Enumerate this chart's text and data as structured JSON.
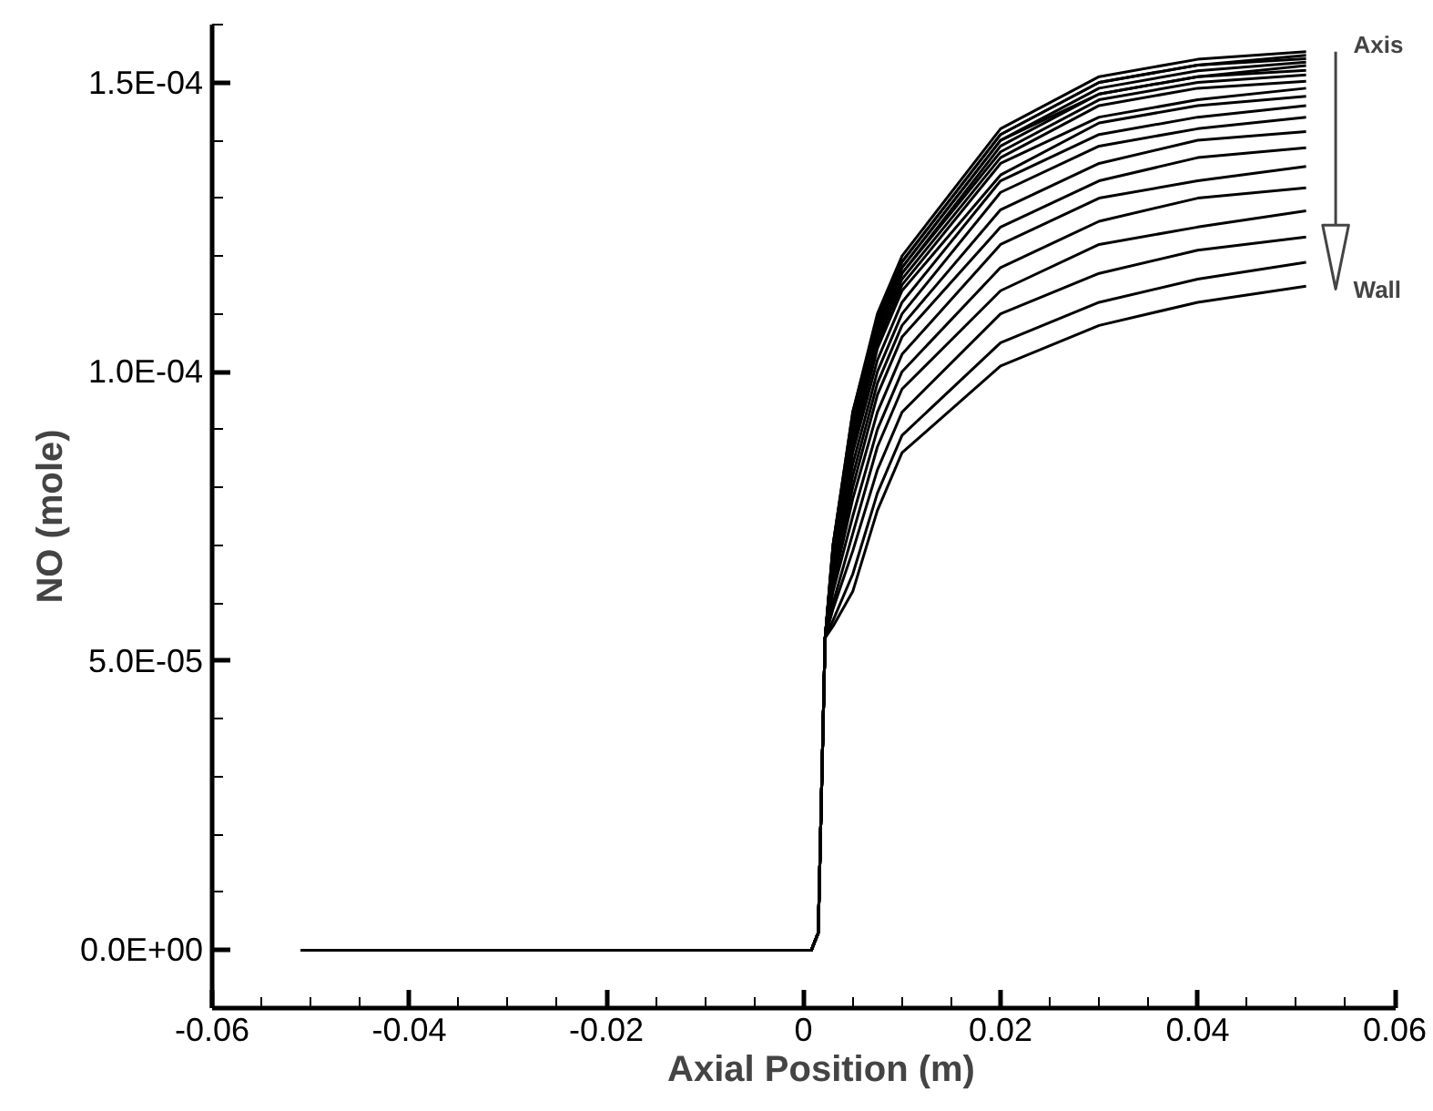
{
  "chart_data": {
    "type": "line",
    "xlabel": "Axial Position (m)",
    "ylabel": "NO (mole)",
    "x": [
      -0.051,
      0.0008,
      0.0015,
      0.0022,
      0.003,
      0.005,
      0.0075,
      0.01,
      0.02,
      0.03,
      0.04,
      0.051
    ],
    "xlim": [
      -0.06,
      0.06
    ],
    "ylim": [
      -1e-05,
      0.00016
    ],
    "xticks": [
      -0.06,
      {
        "value": -0.055,
        "label": null
      },
      {
        "value": -0.05,
        "label": null
      },
      {
        "value": -0.045,
        "label": null
      },
      -0.04,
      {
        "value": -0.035,
        "label": null
      },
      {
        "value": -0.03,
        "label": null
      },
      {
        "value": -0.025,
        "label": null
      },
      -0.02,
      {
        "value": -0.015,
        "label": null
      },
      {
        "value": -0.01,
        "label": null
      },
      {
        "value": -0.005,
        "label": null
      },
      0,
      {
        "value": 0.005,
        "label": null
      },
      {
        "value": 0.01,
        "label": null
      },
      {
        "value": 0.015,
        "label": null
      },
      0.02,
      {
        "value": 0.025,
        "label": null
      },
      {
        "value": 0.03,
        "label": null
      },
      {
        "value": 0.035,
        "label": null
      },
      0.04,
      {
        "value": 0.045,
        "label": null
      },
      {
        "value": 0.05,
        "label": null
      },
      {
        "value": 0.055,
        "label": null
      },
      0.06
    ],
    "yticks": [
      {
        "value": 0,
        "label": "0.0E+00"
      },
      {
        "value": 1e-05,
        "label": null
      },
      {
        "value": 2e-05,
        "label": null
      },
      {
        "value": 3e-05,
        "label": null
      },
      {
        "value": 4e-05,
        "label": null
      },
      {
        "value": 5e-05,
        "label": "5.0E-05"
      },
      {
        "value": 6e-05,
        "label": null
      },
      {
        "value": 7e-05,
        "label": null
      },
      {
        "value": 8e-05,
        "label": null
      },
      {
        "value": 9e-05,
        "label": null
      },
      {
        "value": 0.0001,
        "label": "1.0E-04"
      },
      {
        "value": 0.00011,
        "label": null
      },
      {
        "value": 0.00012,
        "label": null
      },
      {
        "value": 0.00013,
        "label": null
      },
      {
        "value": 0.00014,
        "label": null
      },
      {
        "value": 0.00015,
        "label": "1.5E-04"
      },
      {
        "value": 0.00016,
        "label": null
      }
    ],
    "grid": false,
    "marker": "none",
    "line_style": "solid",
    "annotations": [
      "Axis",
      "Wall"
    ],
    "series": [
      {
        "color": "#000000",
        "values": [
          0,
          0,
          3e-06,
          5.4e-05,
          7e-05,
          9.3e-05,
          0.00011,
          0.00012,
          0.000142,
          0.000151,
          0.000154,
          0.0001553
        ]
      },
      {
        "color": "#000000",
        "values": [
          0,
          0,
          3e-06,
          5.4e-05,
          7e-05,
          9.3e-05,
          0.000109,
          0.000119,
          0.000141,
          0.00015,
          0.000153,
          0.0001547
        ]
      },
      {
        "color": "#000000",
        "values": [
          0,
          0,
          3e-06,
          5.4e-05,
          7e-05,
          9.2e-05,
          0.000109,
          0.000119,
          0.000141,
          0.00015,
          0.000153,
          0.0001541
        ]
      },
      {
        "color": "#000000",
        "values": [
          0,
          0,
          3e-06,
          5.4e-05,
          6.9e-05,
          9.2e-05,
          0.000108,
          0.000118,
          0.00014,
          0.000149,
          0.000152,
          0.0001535
        ]
      },
      {
        "color": "#000000",
        "values": [
          0,
          0,
          3e-06,
          5.4e-05,
          6.9e-05,
          9.1e-05,
          0.000108,
          0.000118,
          0.00014,
          0.000148,
          0.000151,
          0.0001529
        ]
      },
      {
        "color": "#000000",
        "values": [
          0,
          0,
          3e-06,
          5.4e-05,
          6.9e-05,
          9.1e-05,
          0.000107,
          0.000117,
          0.000139,
          0.000148,
          0.000151,
          0.0001521
        ]
      },
      {
        "color": "#000000",
        "values": [
          0,
          0,
          3e-06,
          5.4e-05,
          6.9e-05,
          9e-05,
          0.000107,
          0.000117,
          0.000138,
          0.000147,
          0.00015,
          0.0001513
        ]
      },
      {
        "color": "#000000",
        "values": [
          0,
          0,
          3e-06,
          5.4e-05,
          6.8e-05,
          8.9e-05,
          0.000106,
          0.000116,
          0.000137,
          0.000146,
          0.000149,
          0.0001502
        ]
      },
      {
        "color": "#000000",
        "values": [
          0,
          0,
          3e-06,
          5.4e-05,
          6.8e-05,
          8.8e-05,
          0.000105,
          0.000115,
          0.000136,
          0.000144,
          0.000147,
          0.000149
        ]
      },
      {
        "color": "#000000",
        "values": [
          0,
          0,
          3e-06,
          5.4e-05,
          6.7e-05,
          8.7e-05,
          0.000104,
          0.000114,
          0.000134,
          0.000143,
          0.000146,
          0.0001476
        ]
      },
      {
        "color": "#000000",
        "values": [
          0,
          0,
          3e-06,
          5.4e-05,
          6.7e-05,
          8.6e-05,
          0.000102,
          0.000112,
          0.000133,
          0.000141,
          0.000144,
          0.000146
        ]
      },
      {
        "color": "#000000",
        "values": [
          0,
          0,
          3e-06,
          5.4e-05,
          6.6e-05,
          8.4e-05,
          0.0001,
          0.00011,
          0.000131,
          0.000139,
          0.000142,
          0.000144
        ]
      },
      {
        "color": "#000000",
        "values": [
          0,
          0,
          3e-06,
          5.4e-05,
          6.5e-05,
          8.2e-05,
          9.8e-05,
          0.000108,
          0.000128,
          0.000136,
          0.00014,
          0.0001415
        ]
      },
      {
        "color": "#000000",
        "values": [
          0,
          0,
          3e-06,
          5.4e-05,
          6.4e-05,
          8e-05,
          9.6e-05,
          0.000106,
          0.000125,
          0.000133,
          0.000137,
          0.0001387
        ]
      },
      {
        "color": "#000000",
        "values": [
          0,
          0,
          3e-06,
          5.4e-05,
          6.3e-05,
          7.8e-05,
          9.3e-05,
          0.000103,
          0.000122,
          0.00013,
          0.000133,
          0.0001355
        ]
      },
      {
        "color": "#000000",
        "values": [
          0,
          0,
          3e-06,
          5.4e-05,
          6.2e-05,
          7.5e-05,
          9e-05,
          0.0001,
          0.000118,
          0.000126,
          0.00013,
          0.0001318
        ]
      },
      {
        "color": "#000000",
        "values": [
          0,
          0,
          3e-06,
          5.4e-05,
          6e-05,
          7.2e-05,
          8.7e-05,
          9.7e-05,
          0.000114,
          0.000122,
          0.000125,
          0.0001278
        ]
      },
      {
        "color": "#000000",
        "values": [
          0,
          0,
          3e-06,
          5.4e-05,
          5.9e-05,
          6.9e-05,
          8.3e-05,
          9.3e-05,
          0.00011,
          0.000117,
          0.000121,
          0.0001233
        ]
      },
      {
        "color": "#000000",
        "values": [
          0,
          0,
          3e-06,
          5.4e-05,
          5.7e-05,
          6.5e-05,
          7.9e-05,
          8.9e-05,
          0.000105,
          0.000112,
          0.000116,
          0.0001189
        ]
      },
      {
        "color": "#000000",
        "values": [
          0,
          0,
          3e-06,
          5.4e-05,
          5.6e-05,
          6.2e-05,
          7.6e-05,
          8.6e-05,
          0.000101,
          0.000108,
          0.000112,
          0.0001148
        ]
      }
    ]
  }
}
